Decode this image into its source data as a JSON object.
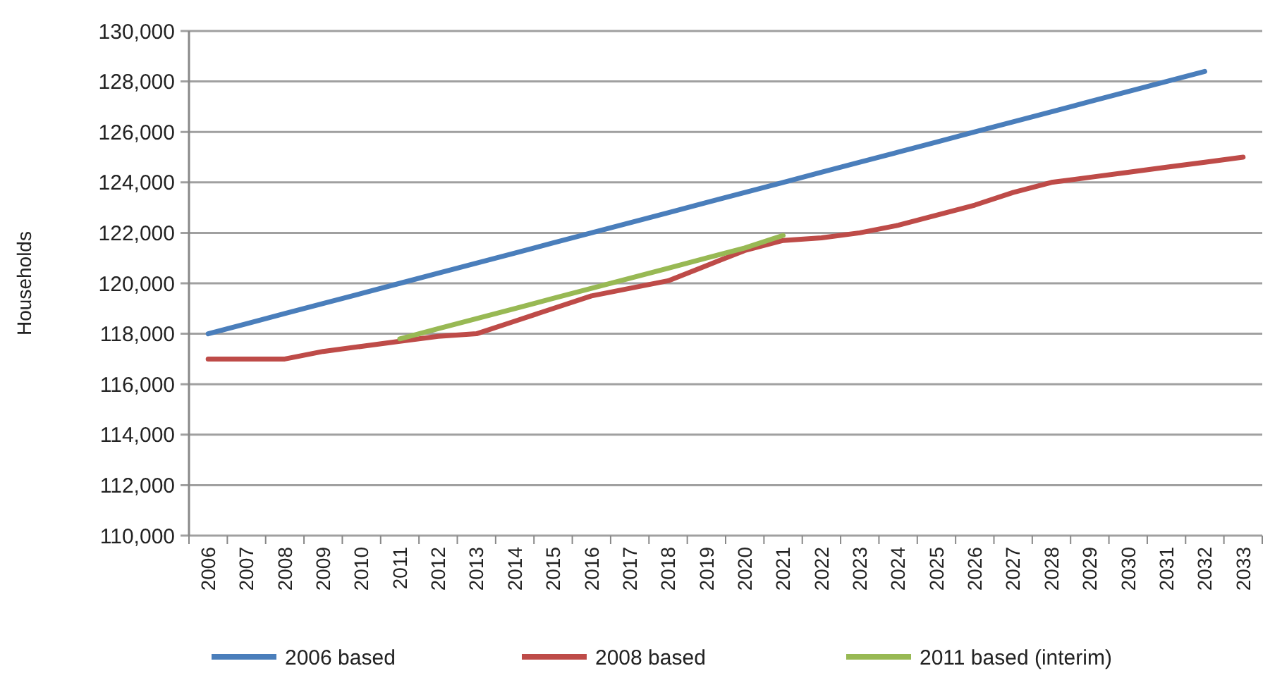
{
  "chart_data": {
    "type": "line",
    "ylabel": "Households",
    "categories": [
      "2006",
      "2007",
      "2008",
      "2009",
      "2010",
      "2011",
      "2012",
      "2013",
      "2014",
      "2015",
      "2016",
      "2017",
      "2018",
      "2019",
      "2020",
      "2021",
      "2022",
      "2023",
      "2024",
      "2025",
      "2026",
      "2027",
      "2028",
      "2029",
      "2030",
      "2031",
      "2032",
      "2033"
    ],
    "series": [
      {
        "name": "2006 based",
        "color": "#4a7ebb",
        "values": [
          118000,
          118400,
          118800,
          119200,
          119600,
          120000,
          120400,
          120800,
          121200,
          121600,
          122000,
          122400,
          122800,
          123200,
          123600,
          124000,
          124400,
          124800,
          125200,
          125600,
          126000,
          126400,
          126800,
          127200,
          127600,
          128000,
          128400,
          null
        ]
      },
      {
        "name": "2008 based",
        "color": "#be4b48",
        "values": [
          117000,
          117000,
          117000,
          117300,
          117500,
          117700,
          117900,
          118000,
          118500,
          119000,
          119500,
          119800,
          120100,
          120700,
          121300,
          121700,
          121800,
          122000,
          122300,
          122700,
          123100,
          123600,
          124000,
          124200,
          124400,
          124600,
          124800,
          125000
        ]
      },
      {
        "name": "2011 based (interim)",
        "color": "#98b954",
        "values": [
          null,
          null,
          null,
          null,
          null,
          117800,
          118200,
          118600,
          119000,
          119400,
          119800,
          120200,
          120600,
          121000,
          121400,
          121900,
          null,
          null,
          null,
          null,
          null,
          null,
          null,
          null,
          null,
          null,
          null,
          null
        ]
      }
    ],
    "ylim": [
      110000,
      130000
    ],
    "yticks": [
      {
        "value": 110000,
        "label": "110,000"
      },
      {
        "value": 112000,
        "label": "112,000"
      },
      {
        "value": 114000,
        "label": "114,000"
      },
      {
        "value": 116000,
        "label": "116,000"
      },
      {
        "value": 118000,
        "label": "118,000"
      },
      {
        "value": 120000,
        "label": "120,000"
      },
      {
        "value": 122000,
        "label": "122,000"
      },
      {
        "value": 124000,
        "label": "124,000"
      },
      {
        "value": 126000,
        "label": "126,000"
      },
      {
        "value": 128000,
        "label": "128,000"
      },
      {
        "value": 130000,
        "label": "130,000"
      }
    ],
    "grid": "y",
    "legend": "bottom",
    "marker": "none",
    "line_style": "solid"
  }
}
